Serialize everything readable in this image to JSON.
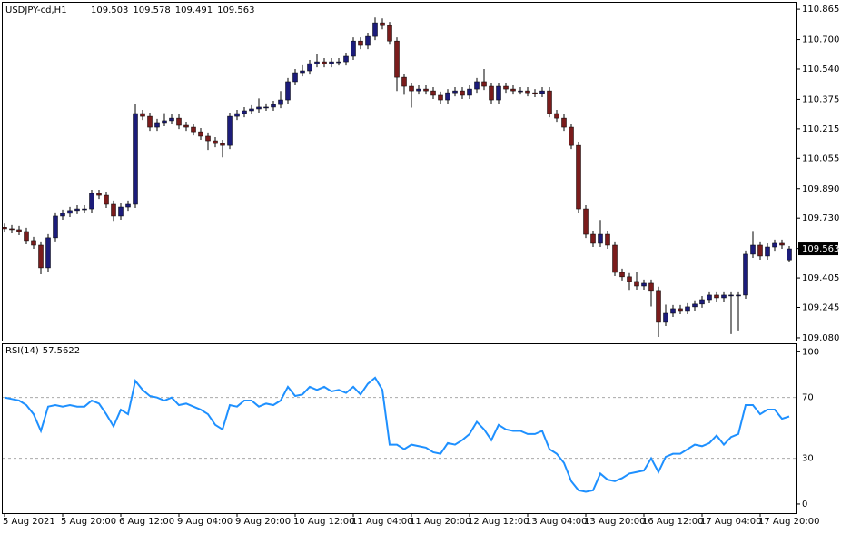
{
  "chart_data": [
    {
      "type": "candlestick",
      "title": "USDJPY-cd,H1",
      "categories": [
        "5 Aug 2021",
        null,
        null,
        null,
        null,
        null,
        null,
        null,
        "5 Aug 20:00",
        null,
        null,
        null,
        null,
        null,
        null,
        null,
        "6 Aug 12:00",
        null,
        null,
        null,
        null,
        null,
        null,
        null,
        "9 Aug 04:00",
        null,
        null,
        null,
        null,
        null,
        null,
        null,
        "9 Aug 20:00",
        null,
        null,
        null,
        null,
        null,
        null,
        null,
        "10 Aug 12:00",
        null,
        null,
        null,
        null,
        null,
        null,
        null,
        "11 Aug 04:00",
        null,
        null,
        null,
        null,
        null,
        null,
        null,
        "11 Aug 20:00",
        null,
        null,
        null,
        null,
        null,
        null,
        null,
        "12 Aug 12:00",
        null,
        null,
        null,
        null,
        null,
        null,
        null,
        "13 Aug 04:00",
        null,
        null,
        null,
        null,
        null,
        null,
        null,
        "13 Aug 20:00",
        null,
        null,
        null,
        null,
        null,
        null,
        null,
        "16 Aug 12:00",
        null,
        null,
        null,
        null,
        null,
        null,
        null,
        "17 Aug 04:00",
        null,
        null,
        null,
        null,
        null,
        null,
        null,
        "17 Aug 20:00",
        null,
        null,
        null,
        null
      ],
      "up_color": "#1c1c7a",
      "down_color": "#7a1c1c",
      "open": [
        109.68,
        109.672,
        109.667,
        109.657,
        109.608,
        109.583,
        109.46,
        109.623,
        109.741,
        109.756,
        109.771,
        109.78,
        109.78,
        109.864,
        109.854,
        109.805,
        109.741,
        109.79,
        109.805,
        110.298,
        110.283,
        110.224,
        110.249,
        110.259,
        110.273,
        110.234,
        110.224,
        110.199,
        110.175,
        110.15,
        110.135,
        110.125,
        110.283,
        110.298,
        110.313,
        110.323,
        110.333,
        110.333,
        110.347,
        110.372,
        110.471,
        110.52,
        110.53,
        110.569,
        110.579,
        110.569,
        110.579,
        110.579,
        110.609,
        110.692,
        110.668,
        110.717,
        110.791,
        110.776,
        110.692,
        110.495,
        110.446,
        110.421,
        110.431,
        110.421,
        110.397,
        110.372,
        110.411,
        110.421,
        110.397,
        110.431,
        110.471,
        110.446,
        110.372,
        110.446,
        110.431,
        110.421,
        110.421,
        110.411,
        110.407,
        110.421,
        110.298,
        110.273,
        110.224,
        110.125,
        109.78,
        109.642,
        109.593,
        109.642,
        109.583,
        109.435,
        109.411,
        109.386,
        109.361,
        109.376,
        109.337,
        109.164,
        109.213,
        109.238,
        109.228,
        109.248,
        109.263,
        109.287,
        109.312,
        109.297,
        109.312,
        109.312,
        109.312,
        109.534,
        109.583,
        109.524,
        109.573,
        109.593,
        109.503
      ],
      "high": [
        109.7,
        109.692,
        109.687,
        109.677,
        109.628,
        109.603,
        109.643,
        109.761,
        109.776,
        109.791,
        109.8,
        109.8,
        109.884,
        109.884,
        109.874,
        109.825,
        109.81,
        109.825,
        110.35,
        110.318,
        110.303,
        110.269,
        110.3,
        110.293,
        110.293,
        110.254,
        110.244,
        110.219,
        110.195,
        110.17,
        110.155,
        110.303,
        110.318,
        110.333,
        110.343,
        110.38,
        110.353,
        110.367,
        110.42,
        110.491,
        110.54,
        110.56,
        110.589,
        110.62,
        110.599,
        110.599,
        110.599,
        110.629,
        110.712,
        110.712,
        110.737,
        110.82,
        110.815,
        110.796,
        110.712,
        110.515,
        110.466,
        110.451,
        110.451,
        110.441,
        110.417,
        110.431,
        110.441,
        110.441,
        110.451,
        110.491,
        110.54,
        110.466,
        110.466,
        110.466,
        110.451,
        110.441,
        110.441,
        110.431,
        110.441,
        110.441,
        110.318,
        110.293,
        110.244,
        110.145,
        109.8,
        109.662,
        109.72,
        109.662,
        109.603,
        109.455,
        109.431,
        109.44,
        109.396,
        109.396,
        109.357,
        109.26,
        109.258,
        109.258,
        109.268,
        109.283,
        109.307,
        109.332,
        109.332,
        109.332,
        109.332,
        109.332,
        109.554,
        109.66,
        109.603,
        109.593,
        109.613,
        109.613,
        109.578
      ],
      "low": [
        109.652,
        109.647,
        109.637,
        109.588,
        109.563,
        109.425,
        109.44,
        109.603,
        109.721,
        109.736,
        109.751,
        109.76,
        109.76,
        109.834,
        109.785,
        109.715,
        109.721,
        109.77,
        109.785,
        110.263,
        110.204,
        110.204,
        110.229,
        110.239,
        110.214,
        110.204,
        110.179,
        110.155,
        110.1,
        110.115,
        110.06,
        110.105,
        110.263,
        110.278,
        110.293,
        110.303,
        110.313,
        110.313,
        110.327,
        110.352,
        110.451,
        110.5,
        110.51,
        110.549,
        110.549,
        110.549,
        110.559,
        110.559,
        110.589,
        110.648,
        110.648,
        110.697,
        110.756,
        110.672,
        110.42,
        110.4,
        110.33,
        110.401,
        110.401,
        110.377,
        110.352,
        110.352,
        110.391,
        110.377,
        110.377,
        110.411,
        110.426,
        110.352,
        110.352,
        110.411,
        110.401,
        110.401,
        110.391,
        110.387,
        110.387,
        110.278,
        110.253,
        110.204,
        110.105,
        109.76,
        109.622,
        109.573,
        109.573,
        109.563,
        109.415,
        109.391,
        109.34,
        109.341,
        109.341,
        109.25,
        109.085,
        109.144,
        109.193,
        109.208,
        109.208,
        109.228,
        109.243,
        109.267,
        109.277,
        109.277,
        109.1,
        109.12,
        109.292,
        109.514,
        109.504,
        109.504,
        109.553,
        109.563,
        109.491
      ],
      "close": [
        109.672,
        109.667,
        109.657,
        109.608,
        109.583,
        109.46,
        109.623,
        109.741,
        109.756,
        109.771,
        109.78,
        109.78,
        109.864,
        109.854,
        109.805,
        109.741,
        109.79,
        109.805,
        110.298,
        110.283,
        110.224,
        110.249,
        110.259,
        110.273,
        110.234,
        110.224,
        110.199,
        110.175,
        110.15,
        110.135,
        110.125,
        110.283,
        110.298,
        110.313,
        110.323,
        110.333,
        110.333,
        110.347,
        110.372,
        110.471,
        110.52,
        110.53,
        110.569,
        110.579,
        110.569,
        110.579,
        110.579,
        110.609,
        110.692,
        110.668,
        110.717,
        110.791,
        110.776,
        110.692,
        110.495,
        110.446,
        110.421,
        110.431,
        110.421,
        110.397,
        110.372,
        110.411,
        110.421,
        110.397,
        110.431,
        110.471,
        110.446,
        110.372,
        110.446,
        110.431,
        110.421,
        110.421,
        110.411,
        110.407,
        110.421,
        110.298,
        110.273,
        110.224,
        110.125,
        109.78,
        109.642,
        109.593,
        109.642,
        109.583,
        109.435,
        109.411,
        109.386,
        109.361,
        109.376,
        109.337,
        109.164,
        109.213,
        109.238,
        109.228,
        109.248,
        109.263,
        109.287,
        109.312,
        109.297,
        109.312,
        109.312,
        109.312,
        109.534,
        109.583,
        109.524,
        109.573,
        109.593,
        109.583,
        109.563
      ],
      "ylim": [
        109.065,
        110.9
      ],
      "yticks": [
        110.865,
        {
          "value": 110.7,
          "label": "110.700"
        },
        {
          "value": 110.54,
          "label": "110.540"
        },
        110.375,
        110.215,
        110.055,
        {
          "value": 109.89,
          "label": "109.890"
        },
        {
          "value": 109.73,
          "label": "109.730"
        },
        109.565,
        109.405,
        109.245,
        {
          "value": 109.08,
          "label": "109.080"
        }
      ]
    },
    {
      "type": "line",
      "name": "RSI(14)",
      "color": "#1e90ff",
      "values": [
        70,
        69,
        68,
        65,
        59,
        48,
        64,
        65,
        64,
        65,
        64,
        64,
        68,
        66,
        59,
        51,
        62,
        59,
        81,
        75,
        71,
        70,
        68,
        70,
        65,
        66,
        64,
        62,
        59,
        52,
        49,
        65,
        64,
        68,
        68,
        64,
        66,
        65,
        68,
        77,
        71,
        72,
        77,
        75,
        77,
        74,
        75,
        73,
        77,
        72,
        79,
        83,
        75,
        39,
        39,
        36,
        39,
        38,
        37,
        34,
        33,
        40,
        39,
        42,
        46,
        54,
        49,
        42,
        52,
        49,
        48,
        48,
        46,
        46,
        48,
        36,
        33,
        27,
        15,
        9,
        8,
        9,
        20,
        16,
        15,
        17,
        20,
        21,
        22,
        30,
        21,
        31,
        33,
        33,
        36,
        39,
        38,
        40,
        45,
        39,
        44,
        46,
        65,
        65,
        59,
        62,
        62,
        56,
        57.5622
      ],
      "ylim": [
        -6,
        105
      ],
      "yticks": [
        0,
        30,
        70,
        100
      ]
    }
  ]
}
